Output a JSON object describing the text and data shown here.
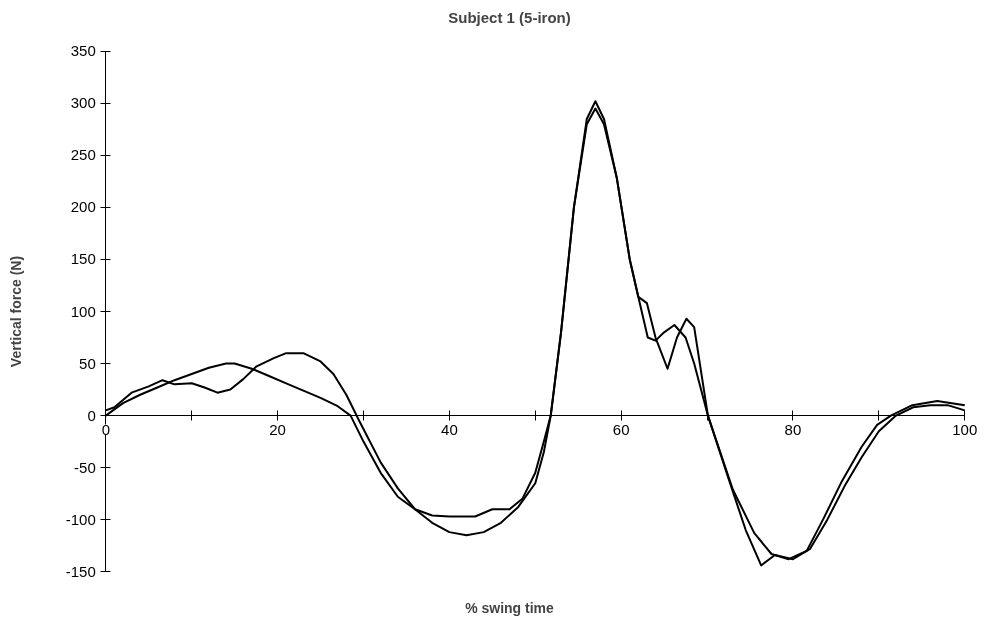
{
  "chart_data": {
    "type": "line",
    "title": "Subject 1 (5-iron)",
    "xlabel": "% swing time",
    "ylabel": "Vertical force (N)",
    "xlim": [
      0,
      100
    ],
    "ylim": [
      -150,
      350
    ],
    "xticks": [
      0,
      {
        "value": 10,
        "label": null
      },
      20,
      {
        "value": 30,
        "label": null
      },
      40,
      {
        "value": 50,
        "label": null
      },
      60,
      {
        "value": 70,
        "label": null
      },
      80,
      {
        "value": 90,
        "label": null
      },
      100
    ],
    "yticks": [
      -150,
      -100,
      -50,
      0,
      50,
      100,
      150,
      200,
      250,
      300,
      350
    ],
    "grid": false,
    "marker": "none",
    "line_style": "solid",
    "series": [
      {
        "color": "#000000",
        "x": [
          0,
          1,
          3,
          5,
          6.6,
          8,
          10,
          11.5,
          13,
          14.5,
          16,
          17.5,
          19.5,
          21,
          23,
          25,
          26.5,
          28,
          29.5,
          32,
          34,
          36,
          38,
          40,
          42,
          44,
          46,
          48,
          50,
          51,
          51.8,
          53,
          54.5,
          56,
          57,
          58,
          59.5,
          61,
          62,
          63,
          64,
          65.4,
          66.5,
          67.6,
          68.5,
          70.1,
          72.6,
          74.5,
          76.3,
          77.9,
          80,
          82,
          84,
          86,
          88,
          90,
          92,
          94,
          96,
          98,
          100
        ],
        "values": [
          5,
          8,
          22,
          28,
          34,
          30,
          31,
          27,
          22,
          25,
          35,
          47,
          55,
          60,
          60,
          52,
          40,
          20,
          -5,
          -45,
          -70,
          -90,
          -103,
          -112,
          -115,
          -112,
          -103,
          -88,
          -65,
          -35,
          0,
          80,
          200,
          285,
          302,
          285,
          228,
          150,
          114,
          108,
          75,
          45,
          75,
          93,
          85,
          0,
          -63,
          -110,
          -144,
          -134,
          -138,
          -128,
          -100,
          -68,
          -40,
          -15,
          0,
          8,
          10,
          10,
          5
        ]
      },
      {
        "color": "#000000",
        "x": [
          0,
          2,
          4,
          6,
          8,
          10,
          12,
          14,
          15,
          17,
          19,
          21,
          23,
          25,
          27,
          28.5,
          30,
          32,
          34,
          36,
          38,
          40,
          43,
          45,
          47,
          48.5,
          50,
          51,
          51.8,
          53,
          54.5,
          56,
          57,
          58,
          59.5,
          61,
          62,
          63.1,
          64,
          65,
          66.2,
          67.5,
          68.5,
          70.1,
          73,
          75.5,
          77.5,
          79.5,
          81.6,
          83.5,
          85.7,
          88,
          89.8,
          91.4,
          93.9,
          96.8,
          100
        ],
        "values": [
          0,
          12,
          20,
          27,
          34,
          40,
          46,
          50,
          50,
          45,
          38,
          31,
          24,
          17,
          9,
          0,
          -25,
          -55,
          -78,
          -90,
          -96,
          -97,
          -97,
          -90,
          -90,
          -80,
          -55,
          -25,
          0,
          80,
          200,
          280,
          295,
          280,
          228,
          150,
          114,
          75,
          72,
          80,
          87,
          75,
          50,
          0,
          -71,
          -113,
          -133,
          -138,
          -130,
          -100,
          -63,
          -30,
          -9,
          0,
          10,
          14,
          10
        ]
      }
    ]
  }
}
